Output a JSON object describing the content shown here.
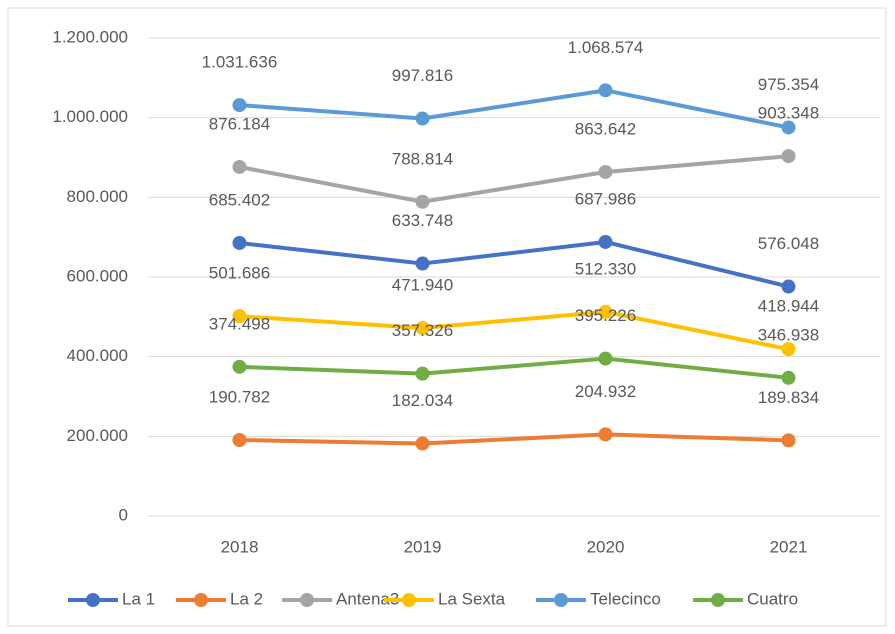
{
  "chart_data": {
    "type": "line",
    "categories": [
      "2018",
      "2019",
      "2020",
      "2021"
    ],
    "series": [
      {
        "name": "La 1",
        "color": "#4472c4",
        "values": [
          685402,
          633748,
          687986,
          576048
        ],
        "value_labels": [
          "685.402",
          "633.748",
          "687.986",
          "576.048"
        ]
      },
      {
        "name": "La 2",
        "color": "#ed7d31",
        "values": [
          190782,
          182034,
          204932,
          189834
        ],
        "value_labels": [
          "190.782",
          "182.034",
          "204.932",
          "189.834"
        ]
      },
      {
        "name": "Antena3",
        "color": "#a5a5a5",
        "values": [
          876184,
          788814,
          863642,
          903348
        ],
        "value_labels": [
          "876.184",
          "788.814",
          "863.642",
          "903.348"
        ]
      },
      {
        "name": "La Sexta",
        "color": "#ffc000",
        "values": [
          501686,
          471940,
          512330,
          418944
        ],
        "value_labels": [
          "501.686",
          "471.940",
          "512.330",
          "418.944"
        ]
      },
      {
        "name": "Telecinco",
        "color": "#5b9bd5",
        "values": [
          1031636,
          997816,
          1068574,
          975354
        ],
        "value_labels": [
          "1.031.636",
          "997.816",
          "1.068.574",
          "975.354"
        ]
      },
      {
        "name": "Cuatro",
        "color": "#70ad47",
        "values": [
          374498,
          357326,
          395226,
          346938
        ],
        "value_labels": [
          "374.498",
          "357.326",
          "395.226",
          "346.938"
        ]
      }
    ],
    "ylim": [
      0,
      1200000
    ],
    "yticks": [
      0,
      {
        "value": 200000,
        "label": "200.000"
      },
      {
        "value": 400000,
        "label": "400.000"
      },
      {
        "value": 600000,
        "label": "600.000"
      },
      {
        "value": 800000,
        "label": "800.000"
      },
      {
        "value": 1000000,
        "label": "1.000.000"
      },
      {
        "value": 1200000,
        "label": "1.200.000"
      }
    ],
    "grid": true,
    "legend": "bottom"
  }
}
